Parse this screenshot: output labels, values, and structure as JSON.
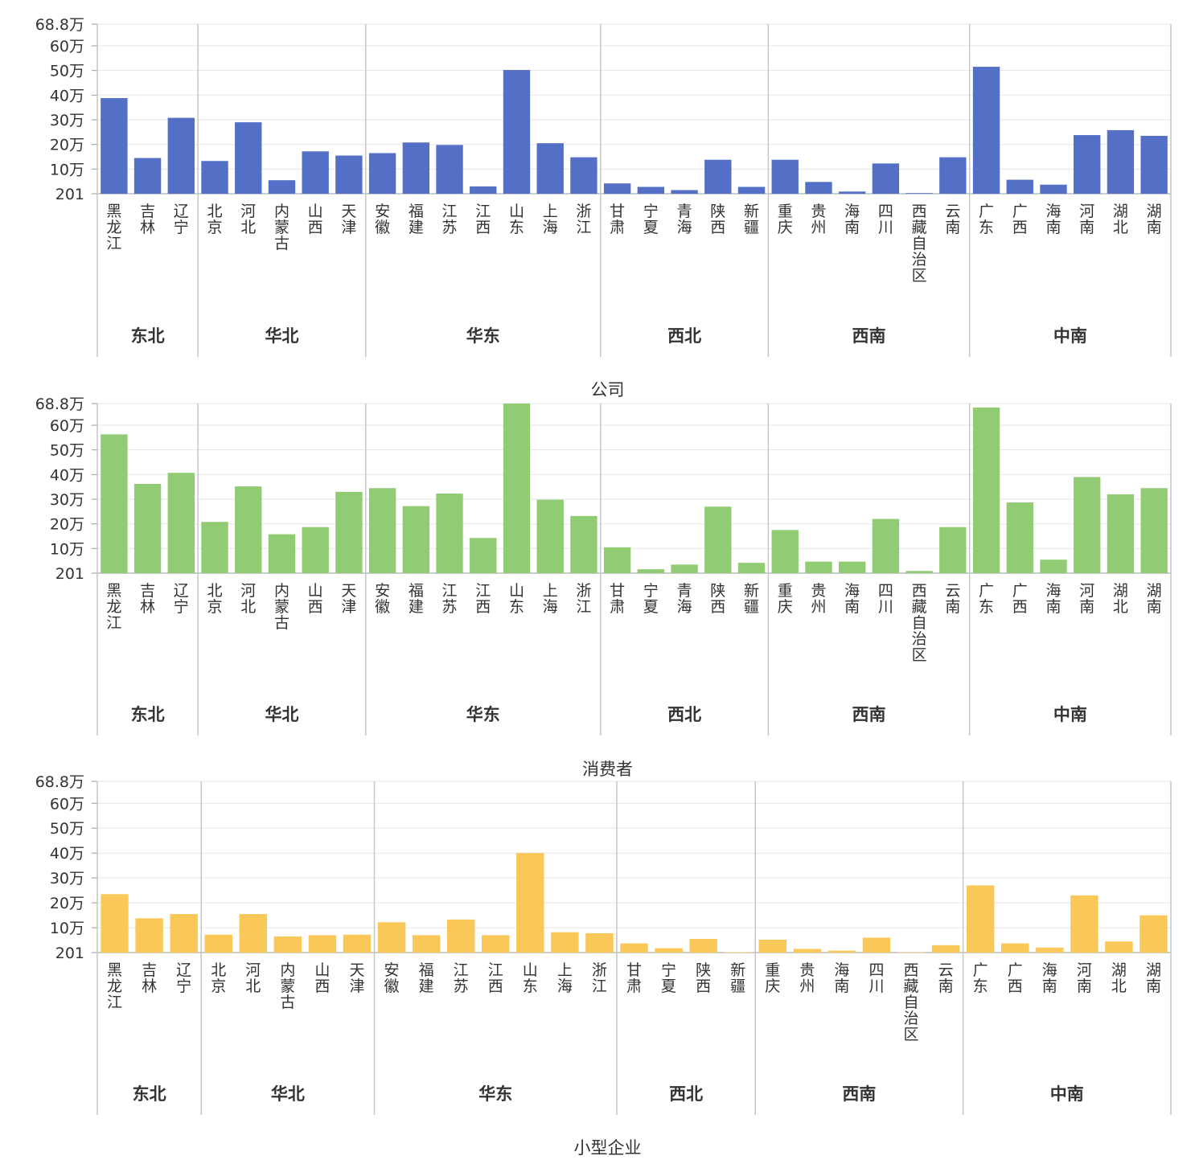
{
  "y_ticks": [
    {
      "value": 201,
      "label": "201"
    },
    {
      "value": 100000,
      "label": "10万"
    },
    {
      "value": 200000,
      "label": "20万"
    },
    {
      "value": 300000,
      "label": "30万"
    },
    {
      "value": 400000,
      "label": "40万"
    },
    {
      "value": 500000,
      "label": "50万"
    },
    {
      "value": 600000,
      "label": "60万"
    },
    {
      "value": 688000,
      "label": "68.8万"
    }
  ],
  "chart_data": [
    {
      "type": "bar",
      "title": "公司",
      "color": "#5470C6",
      "ylim": [
        201,
        688000
      ],
      "grid": true,
      "groups": [
        {
          "name": "东北",
          "categories": [
            "黑龙江",
            "吉林",
            "辽宁"
          ],
          "values": [
            388000,
            145000,
            308000
          ]
        },
        {
          "name": "华北",
          "categories": [
            "北京",
            "河北",
            "内蒙古",
            "山西",
            "天津"
          ],
          "values": [
            133000,
            290000,
            55000,
            172000,
            155000
          ]
        },
        {
          "name": "华东",
          "categories": [
            "安徽",
            "福建",
            "江苏",
            "江西",
            "山东",
            "上海",
            "浙江"
          ],
          "values": [
            165000,
            208000,
            198000,
            30000,
            502000,
            205000,
            148000
          ]
        },
        {
          "name": "西北",
          "categories": [
            "甘肃",
            "宁夏",
            "青海",
            "陕西",
            "新疆"
          ],
          "values": [
            42000,
            28000,
            15000,
            138000,
            28000
          ]
        },
        {
          "name": "西南",
          "categories": [
            "重庆",
            "贵州",
            "海南",
            "四川",
            "西藏自治区",
            "云南"
          ],
          "values": [
            138000,
            48000,
            9000,
            123000,
            3000,
            148000
          ]
        },
        {
          "name": "中南",
          "categories": [
            "广东",
            "广西",
            "海南",
            "河南",
            "湖北",
            "湖南"
          ],
          "values": [
            515000,
            57000,
            37000,
            238000,
            258000,
            235000
          ]
        }
      ]
    },
    {
      "type": "bar",
      "title": "消费者",
      "color": "#91CC75",
      "ylim": [
        201,
        688000
      ],
      "grid": true,
      "groups": [
        {
          "name": "东北",
          "categories": [
            "黑龙江",
            "吉林",
            "辽宁"
          ],
          "values": [
            563000,
            362000,
            407000
          ]
        },
        {
          "name": "华北",
          "categories": [
            "北京",
            "河北",
            "内蒙古",
            "山西",
            "天津"
          ],
          "values": [
            208000,
            352000,
            158000,
            187000,
            330000
          ]
        },
        {
          "name": "华东",
          "categories": [
            "安徽",
            "福建",
            "江苏",
            "江西",
            "山东",
            "上海",
            "浙江"
          ],
          "values": [
            345000,
            272000,
            323000,
            143000,
            688000,
            298000,
            232000
          ]
        },
        {
          "name": "西北",
          "categories": [
            "甘肃",
            "宁夏",
            "青海",
            "陕西",
            "新疆"
          ],
          "values": [
            105000,
            16000,
            35000,
            270000,
            42000
          ]
        },
        {
          "name": "西南",
          "categories": [
            "重庆",
            "贵州",
            "海南",
            "四川",
            "西藏自治区",
            "云南"
          ],
          "values": [
            175000,
            47000,
            47000,
            220000,
            9000,
            187000
          ]
        },
        {
          "name": "中南",
          "categories": [
            "广东",
            "广西",
            "海南",
            "河南",
            "湖北",
            "湖南"
          ],
          "values": [
            672000,
            287000,
            55000,
            390000,
            320000,
            345000
          ]
        }
      ]
    },
    {
      "type": "bar",
      "title": "小型企业",
      "color": "#FAC858",
      "ylim": [
        201,
        688000
      ],
      "grid": true,
      "groups": [
        {
          "name": "东北",
          "categories": [
            "黑龙江",
            "吉林",
            "辽宁"
          ],
          "values": [
            235000,
            138000,
            155000
          ]
        },
        {
          "name": "华北",
          "categories": [
            "北京",
            "河北",
            "内蒙古",
            "山西",
            "天津"
          ],
          "values": [
            72000,
            155000,
            65000,
            70000,
            72000
          ]
        },
        {
          "name": "华东",
          "categories": [
            "安徽",
            "福建",
            "江苏",
            "江西",
            "山东",
            "上海",
            "浙江"
          ],
          "values": [
            122000,
            70000,
            133000,
            70000,
            400000,
            82000,
            78000
          ]
        },
        {
          "name": "西北",
          "categories": [
            "甘肃",
            "宁夏",
            "陕西",
            "新疆"
          ],
          "values": [
            37000,
            18000,
            55000,
            2000
          ]
        },
        {
          "name": "西南",
          "categories": [
            "重庆",
            "贵州",
            "海南",
            "四川",
            "西藏自治区",
            "云南"
          ],
          "values": [
            52000,
            15000,
            8000,
            60000,
            1000,
            30000
          ]
        },
        {
          "name": "中南",
          "categories": [
            "广东",
            "广西",
            "海南",
            "河南",
            "湖北",
            "湖南"
          ],
          "values": [
            270000,
            37000,
            20000,
            230000,
            45000,
            150000
          ]
        }
      ]
    }
  ]
}
